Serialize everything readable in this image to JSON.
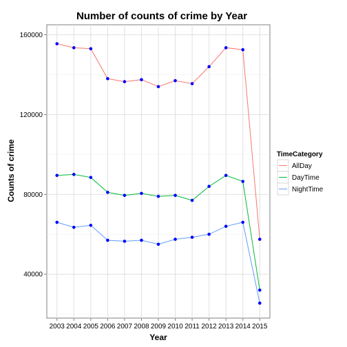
{
  "chart_data": {
    "type": "line",
    "title": "Number of counts of crime by Year",
    "xlabel": "Year",
    "ylabel": "Counts of crime",
    "x": [
      2003,
      2004,
      2005,
      2006,
      2007,
      2008,
      2009,
      2010,
      2011,
      2012,
      2013,
      2014,
      2015
    ],
    "x_tick_labels": [
      "2003",
      "2004",
      "2005",
      "2006",
      "2007",
      "2008",
      "2009",
      "2010",
      "2011",
      "2012",
      "2013",
      "2014",
      "2015"
    ],
    "ylim": [
      18000,
      165000
    ],
    "y_ticks": [
      40000,
      80000,
      120000,
      160000
    ],
    "y_tick_labels": [
      "40000",
      "80000",
      "120000",
      "160000"
    ],
    "grid": true,
    "legend": {
      "title": "TimeCategory",
      "placement": "right"
    },
    "point_color": "#0000ff",
    "series": [
      {
        "name": "AllDay",
        "color": "#f8766d",
        "values": [
          155500,
          153500,
          153000,
          138000,
          136500,
          137500,
          134000,
          137000,
          135500,
          144000,
          153500,
          152500,
          57500
        ]
      },
      {
        "name": "DayTime",
        "color": "#00ba38",
        "values": [
          89500,
          90000,
          88500,
          81000,
          79500,
          80500,
          79000,
          79500,
          77000,
          84000,
          89500,
          86500,
          32000
        ]
      },
      {
        "name": "NightTime",
        "color": "#619cff",
        "values": [
          66000,
          63500,
          64500,
          57000,
          56500,
          57000,
          55000,
          57500,
          58500,
          60000,
          64000,
          66000,
          25500
        ]
      }
    ]
  }
}
